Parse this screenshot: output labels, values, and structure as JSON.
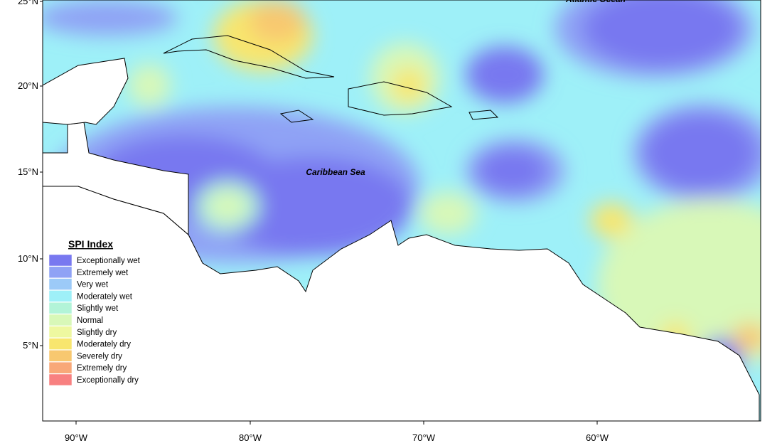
{
  "map": {
    "ocean_labels": [
      "Atlantic Ocean",
      "Caribbean Sea"
    ],
    "lat_labels": [
      "25°N",
      "20°N",
      "15°N",
      "10°N",
      "5°N"
    ],
    "lon_labels": [
      "90°W",
      "80°W",
      "70°W",
      "60°W"
    ],
    "legend": {
      "title": "SPI Index",
      "items": [
        {
          "label": "Exceptionally wet",
          "color": "#7878f0"
        },
        {
          "label": "Extremely wet",
          "color": "#8fa2f5"
        },
        {
          "label": "Very wet",
          "color": "#9ccaf8"
        },
        {
          "label": "Moderately wet",
          "color": "#9ef0f8"
        },
        {
          "label": "Slightly wet",
          "color": "#b2f4d8"
        },
        {
          "label": "Normal",
          "color": "#d8f8b8"
        },
        {
          "label": "Slightly dry",
          "color": "#eef8a0"
        },
        {
          "label": "Moderately dry",
          "color": "#f8e66e"
        },
        {
          "label": "Severely dry",
          "color": "#f8c870"
        },
        {
          "label": "Extremely dry",
          "color": "#f8a878"
        },
        {
          "label": "Exceptionally dry",
          "color": "#f88080"
        }
      ]
    }
  }
}
